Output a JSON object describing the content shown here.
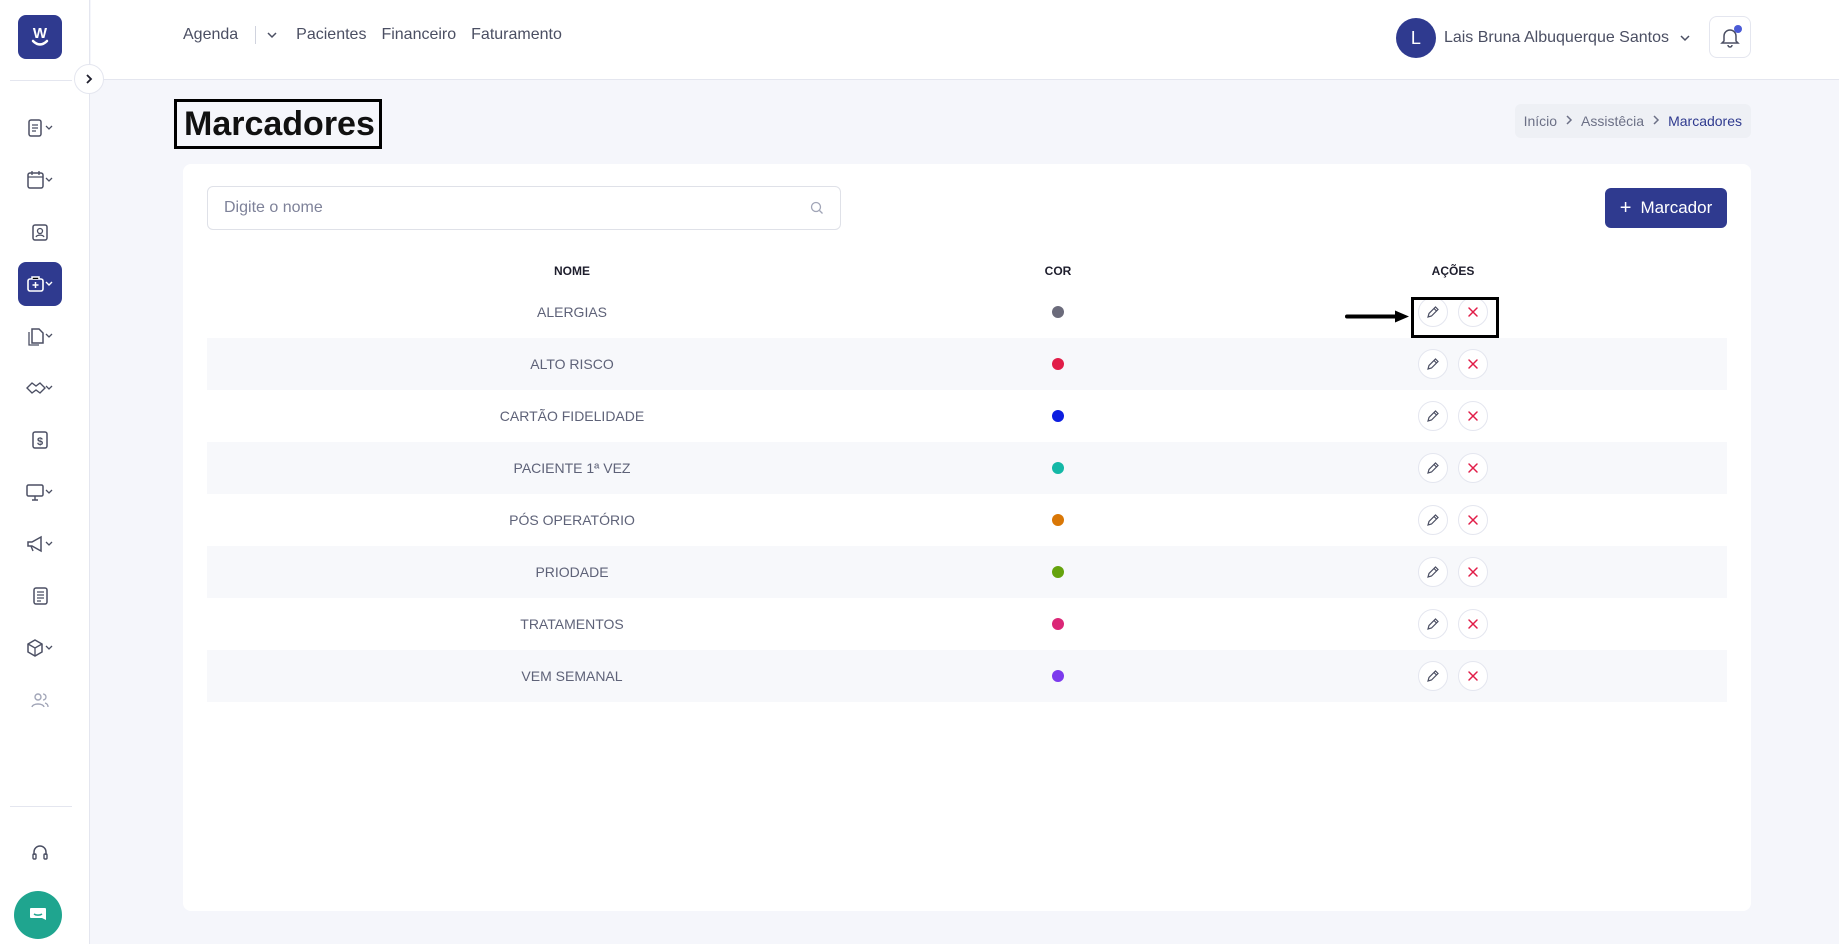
{
  "topnav": {
    "agenda": "Agenda",
    "pacientes": "Pacientes",
    "financeiro": "Financeiro",
    "faturamento": "Faturamento"
  },
  "user": {
    "initial": "L",
    "name": "Lais Bruna Albuquerque Santos"
  },
  "page": {
    "title": "Marcadores"
  },
  "breadcrumb": {
    "items": [
      "Início",
      "Assistêcia",
      "Marcadores"
    ]
  },
  "search": {
    "placeholder": "Digite o nome"
  },
  "add_button": {
    "label": "Marcador"
  },
  "table": {
    "headers": [
      "NOME",
      "COR",
      "AÇÕES"
    ],
    "rows": [
      {
        "name": "ALERGIAS",
        "color": "#6b6b7b"
      },
      {
        "name": "ALTO RISCO",
        "color": "#e11d48"
      },
      {
        "name": "CARTÃO FIDELIDADE",
        "color": "#0d1ee0"
      },
      {
        "name": "PACIENTE 1ª VEZ",
        "color": "#14b8a6"
      },
      {
        "name": "PÓS OPERATÓRIO",
        "color": "#d97706"
      },
      {
        "name": "PRIODADE",
        "color": "#65a30d"
      },
      {
        "name": "TRATAMENTOS",
        "color": "#db2777"
      },
      {
        "name": "VEM SEMANAL",
        "color": "#7c3aed"
      }
    ]
  },
  "colors": {
    "brand": "#2f3a8f",
    "chat": "#1fa58f",
    "delete": "#e11d48"
  }
}
